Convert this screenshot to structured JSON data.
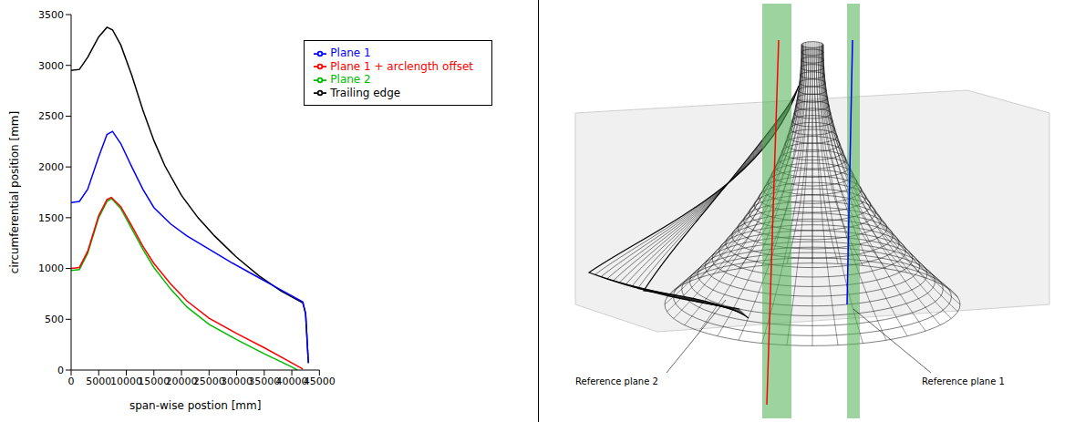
{
  "chart_data": {
    "type": "line",
    "x_label": "span-wise postion [mm]",
    "y_label": "circumferential position [mm]",
    "xlim": [
      0,
      45000
    ],
    "xticks": [
      0,
      5000,
      10000,
      15000,
      20000,
      25000,
      30000,
      35000,
      40000,
      45000
    ],
    "ylim": [
      0,
      3500
    ],
    "yticks": [
      0,
      500,
      1000,
      1500,
      2000,
      2500,
      3000,
      3500
    ],
    "grid": false,
    "legend": "upper right",
    "series": [
      {
        "name": "Trailing edge",
        "color": "#000000",
        "x": [
          0,
          1500,
          3000,
          5000,
          6500,
          7500,
          9000,
          11000,
          13000,
          15000,
          17000,
          20000,
          23000,
          26000,
          30000,
          34000,
          38000,
          42000,
          42500,
          43000
        ],
        "values": [
          2950,
          2960,
          3080,
          3280,
          3375,
          3350,
          3200,
          2900,
          2560,
          2260,
          2010,
          1720,
          1500,
          1320,
          1110,
          930,
          780,
          660,
          560,
          70
        ]
      },
      {
        "name": "Plane 1",
        "color": "#0000ff",
        "x": [
          0,
          1500,
          3000,
          5000,
          6500,
          7500,
          9000,
          11000,
          13000,
          15000,
          18000,
          21000,
          25000,
          29000,
          33000,
          37000,
          40000,
          42000,
          42500,
          43000
        ],
        "values": [
          1650,
          1660,
          1780,
          2100,
          2320,
          2350,
          2230,
          2000,
          1780,
          1600,
          1440,
          1320,
          1190,
          1060,
          940,
          820,
          730,
          670,
          550,
          70
        ]
      },
      {
        "name": "Plane 2",
        "color": "#00bb00",
        "x": [
          0,
          1500,
          3000,
          5000,
          6500,
          7300,
          9000,
          11000,
          13000,
          15000,
          18000,
          21000,
          25000,
          30000,
          35000,
          40000,
          41000
        ],
        "values": [
          980,
          990,
          1150,
          1500,
          1660,
          1690,
          1590,
          1390,
          1190,
          1010,
          800,
          620,
          450,
          300,
          160,
          30,
          0
        ]
      },
      {
        "name": "Plane 1 + arclength offset",
        "color": "#ff0000",
        "x": [
          0,
          1500,
          3000,
          5000,
          6500,
          7300,
          9000,
          11000,
          13000,
          15000,
          18000,
          21000,
          25000,
          30000,
          35000,
          40000,
          42000
        ],
        "values": [
          1000,
          1010,
          1170,
          1520,
          1680,
          1700,
          1610,
          1420,
          1220,
          1050,
          850,
          680,
          510,
          360,
          220,
          70,
          10
        ]
      }
    ]
  },
  "diagram": {
    "labels": {
      "reference_plane_2": "Reference plane 2",
      "reference_plane_1": "Reference plane 1"
    }
  }
}
